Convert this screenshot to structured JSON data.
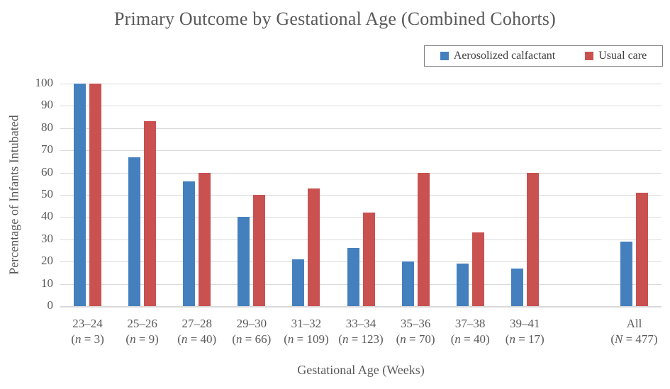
{
  "chart_data": {
    "type": "bar",
    "title": "Primary Outcome by Gestational Age (Combined Cohorts)",
    "xlabel": "Gestational Age (Weeks)",
    "ylabel": "Percentage of Infants Intubated",
    "ylim": [
      0,
      100
    ],
    "ytick_step": 10,
    "grid": true,
    "legend_position": "top-right",
    "categories": [
      "23–24",
      "25–26",
      "27–28",
      "29–30",
      "31–32",
      "33–34",
      "35–36",
      "37–38",
      "39–41",
      "All"
    ],
    "sublabels": [
      {
        "symbol": "n",
        "count": "3"
      },
      {
        "symbol": "n",
        "count": "9"
      },
      {
        "symbol": "n",
        "count": "40"
      },
      {
        "symbol": "n",
        "count": "66"
      },
      {
        "symbol": "n",
        "count": "109"
      },
      {
        "symbol": "n",
        "count": "123"
      },
      {
        "symbol": "n",
        "count": "70"
      },
      {
        "symbol": "n",
        "count": "40"
      },
      {
        "symbol": "n",
        "count": "17"
      },
      {
        "symbol": "N",
        "count": "477"
      }
    ],
    "series": [
      {
        "name": "Aerosolized calfactant",
        "color": "#4480BE",
        "values": [
          100,
          67,
          56,
          40,
          21,
          26,
          20,
          19,
          17,
          29
        ]
      },
      {
        "name": "Usual care",
        "color": "#C95150",
        "values": [
          100,
          83,
          60,
          50,
          53,
          42,
          60,
          33,
          60,
          51
        ]
      }
    ],
    "layout": {
      "slots": [
        0,
        1,
        2,
        3,
        4,
        5,
        6,
        7,
        8,
        10
      ],
      "total_slots": 11,
      "gridline_color": "#d9d9d9",
      "text_color": "#595959"
    }
  }
}
